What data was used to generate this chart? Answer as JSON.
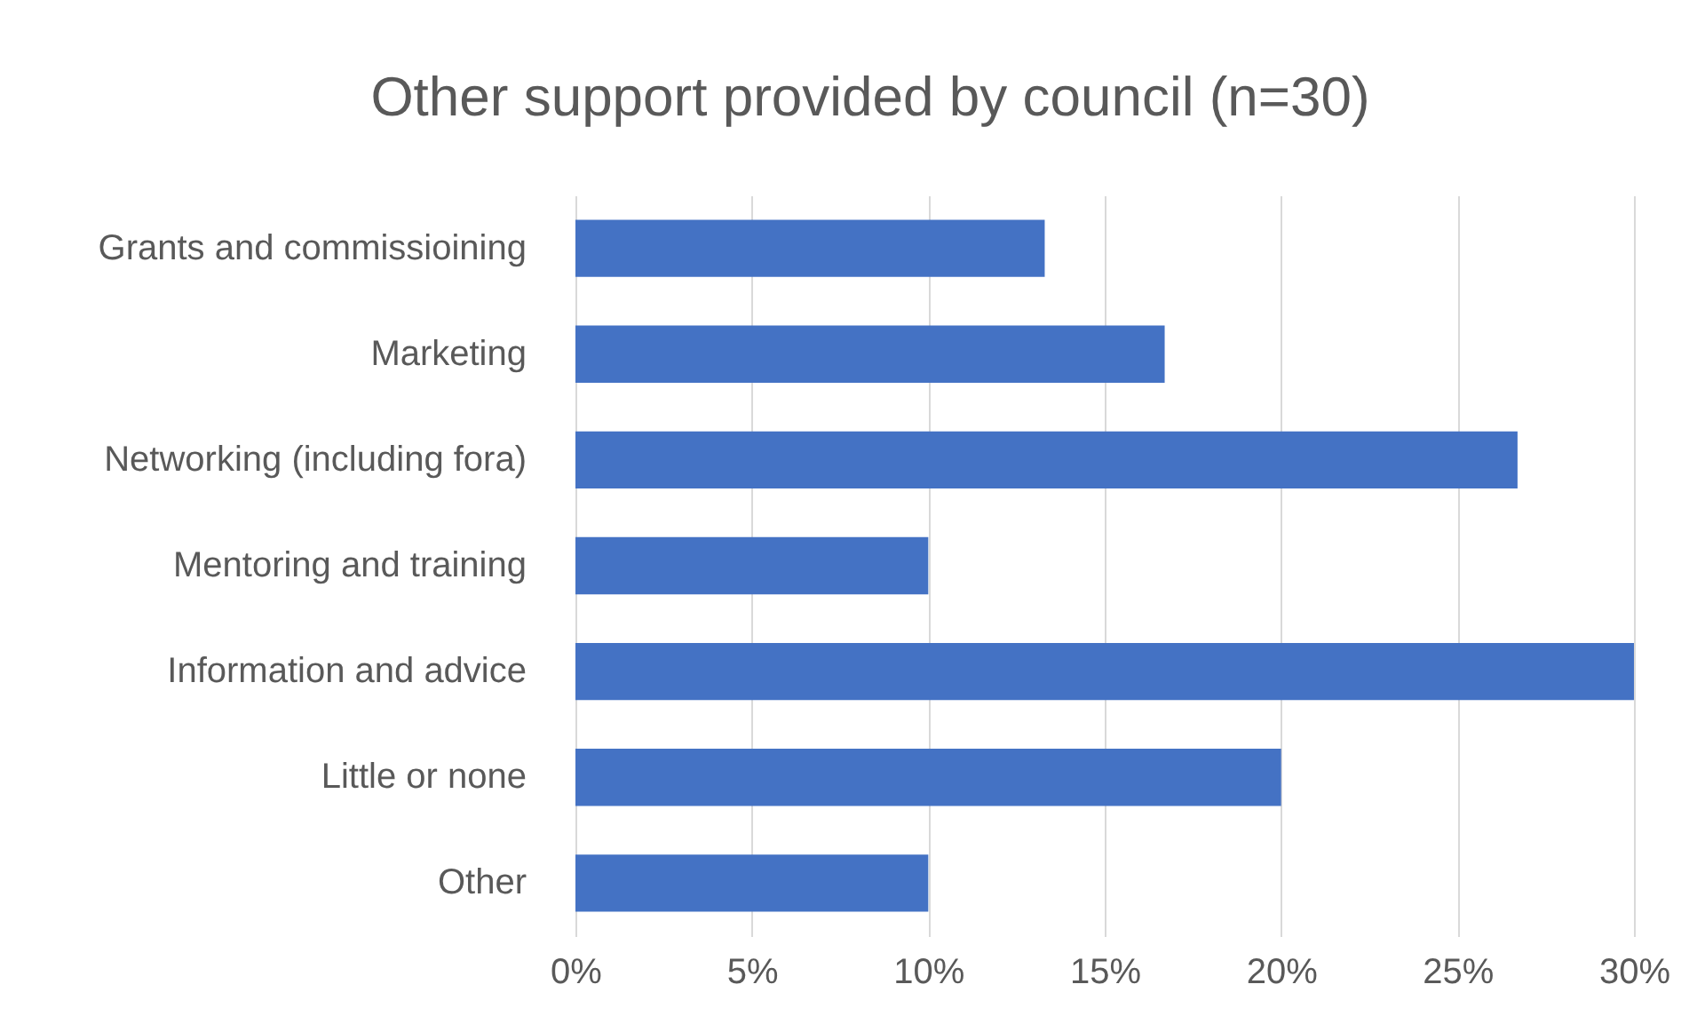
{
  "chart_data": {
    "type": "bar",
    "orientation": "horizontal",
    "title": "Other support provided by council (n=30)",
    "categories": [
      "Grants and commissioining",
      "Marketing",
      "Networking (including fora)",
      "Mentoring and training",
      "Information and advice",
      "Little or none",
      "Other"
    ],
    "values": [
      13.3,
      16.7,
      26.7,
      10,
      30,
      20,
      10
    ],
    "color": "#4472c4",
    "xlim": [
      0,
      30
    ],
    "xticks": [
      {
        "value": 0,
        "label": "0%"
      },
      {
        "value": 5,
        "label": "5%"
      },
      {
        "value": 10,
        "label": "10%"
      },
      {
        "value": 15,
        "label": "15%"
      },
      {
        "value": 20,
        "label": "20%"
      },
      {
        "value": 25,
        "label": "25%"
      },
      {
        "value": 30,
        "label": "30%"
      }
    ],
    "grid": "x"
  }
}
